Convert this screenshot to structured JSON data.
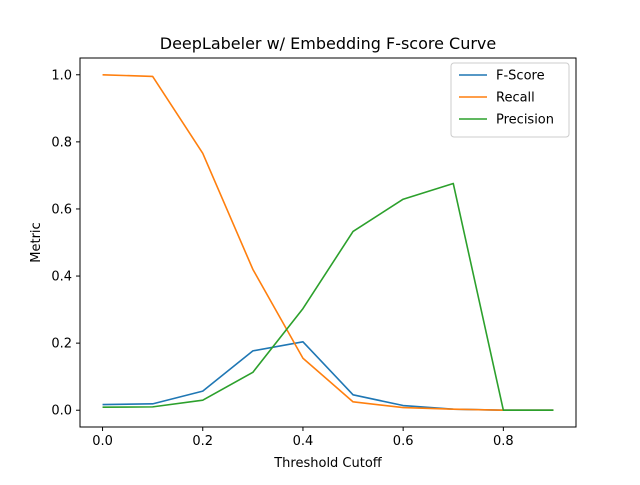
{
  "chart_data": {
    "type": "line",
    "title": "DeepLabeler w/ Embedding F-score Curve",
    "xlabel": "Threshold Cutoff",
    "ylabel": "Metric",
    "xlim": [
      -0.045,
      0.945
    ],
    "ylim": [
      -0.05,
      1.05
    ],
    "xticks": [
      0.0,
      0.2,
      0.4,
      0.6,
      0.8
    ],
    "xtick_labels": [
      "0.0",
      "0.2",
      "0.4",
      "0.6",
      "0.8"
    ],
    "yticks": [
      0.0,
      0.2,
      0.4,
      0.6,
      0.8,
      1.0
    ],
    "ytick_labels": [
      "0.0",
      "0.2",
      "0.4",
      "0.6",
      "0.8",
      "1.0"
    ],
    "grid": false,
    "legend_position": "top-right",
    "x": [
      0.0,
      0.1,
      0.2,
      0.3,
      0.4,
      0.5,
      0.6,
      0.7,
      0.8,
      0.9
    ],
    "series": [
      {
        "name": "F-Score",
        "color": "#1f77b4",
        "values": [
          0.017,
          0.019,
          0.057,
          0.177,
          0.204,
          0.046,
          0.014,
          0.003,
          0.0,
          0.0
        ]
      },
      {
        "name": "Recall",
        "color": "#ff7f0e",
        "values": [
          1.0,
          0.995,
          0.766,
          0.42,
          0.155,
          0.025,
          0.008,
          0.003,
          0.0,
          0.0
        ]
      },
      {
        "name": "Precision",
        "color": "#2ca02c",
        "values": [
          0.009,
          0.01,
          0.03,
          0.113,
          0.303,
          0.533,
          0.629,
          0.676,
          0.0,
          0.0
        ]
      }
    ]
  }
}
